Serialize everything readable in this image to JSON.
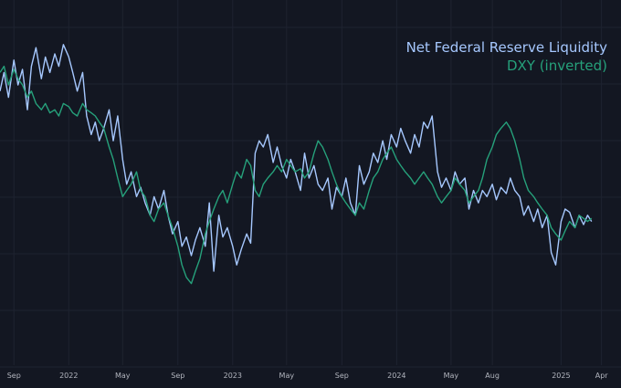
{
  "chart_data": {
    "type": "line",
    "title": "",
    "xlabel": "",
    "ylabel": "",
    "x_ticks": [
      "Sep",
      "2022",
      "May",
      "Sep",
      "2023",
      "May",
      "Sep",
      "2024",
      "May",
      "Aug",
      "2025",
      "Apr"
    ],
    "x_tick_dates": [
      "2021-09-01",
      "2022-01-01",
      "2022-05-01",
      "2022-09-01",
      "2023-01-01",
      "2023-05-01",
      "2023-09-01",
      "2024-01-01",
      "2024-05-01",
      "2024-08-01",
      "2025-01-01",
      "2025-04-01"
    ],
    "x_range": [
      "2021-08-01",
      "2025-04-20"
    ],
    "y_axis": "hidden",
    "y_range": [
      0,
      100
    ],
    "grid": true,
    "legend_placement": "top-right",
    "series": [
      {
        "name": "Net Federal Reserve Liquidity",
        "color": "#a6c8ff",
        "values": [
          [
            "2021-08-01",
            78
          ],
          [
            "2021-08-10",
            84
          ],
          [
            "2021-08-20",
            76
          ],
          [
            "2021-09-01",
            88
          ],
          [
            "2021-09-10",
            80
          ],
          [
            "2021-09-20",
            85
          ],
          [
            "2021-10-01",
            72
          ],
          [
            "2021-10-10",
            86
          ],
          [
            "2021-10-20",
            92
          ],
          [
            "2021-11-01",
            82
          ],
          [
            "2021-11-10",
            89
          ],
          [
            "2021-11-20",
            84
          ],
          [
            "2021-12-01",
            90
          ],
          [
            "2021-12-10",
            86
          ],
          [
            "2021-12-20",
            93
          ],
          [
            "2022-01-01",
            89
          ],
          [
            "2022-01-10",
            84
          ],
          [
            "2022-01-20",
            78
          ],
          [
            "2022-02-01",
            84
          ],
          [
            "2022-02-10",
            70
          ],
          [
            "2022-02-20",
            64
          ],
          [
            "2022-03-01",
            68
          ],
          [
            "2022-03-10",
            62
          ],
          [
            "2022-03-20",
            66
          ],
          [
            "2022-04-01",
            72
          ],
          [
            "2022-04-10",
            62
          ],
          [
            "2022-04-20",
            70
          ],
          [
            "2022-05-01",
            56
          ],
          [
            "2022-05-10",
            48
          ],
          [
            "2022-05-20",
            52
          ],
          [
            "2022-06-01",
            44
          ],
          [
            "2022-06-10",
            47
          ],
          [
            "2022-06-20",
            42
          ],
          [
            "2022-07-01",
            38
          ],
          [
            "2022-07-10",
            44
          ],
          [
            "2022-07-20",
            40
          ],
          [
            "2022-08-01",
            46
          ],
          [
            "2022-08-10",
            38
          ],
          [
            "2022-08-20",
            32
          ],
          [
            "2022-09-01",
            36
          ],
          [
            "2022-09-10",
            28
          ],
          [
            "2022-09-20",
            31
          ],
          [
            "2022-10-01",
            25
          ],
          [
            "2022-10-10",
            30
          ],
          [
            "2022-10-20",
            34
          ],
          [
            "2022-11-01",
            28
          ],
          [
            "2022-11-10",
            42
          ],
          [
            "2022-11-20",
            20
          ],
          [
            "2022-12-01",
            38
          ],
          [
            "2022-12-10",
            31
          ],
          [
            "2022-12-20",
            34
          ],
          [
            "2023-01-01",
            28
          ],
          [
            "2023-01-10",
            22
          ],
          [
            "2023-01-20",
            27
          ],
          [
            "2023-02-01",
            32
          ],
          [
            "2023-02-10",
            29
          ],
          [
            "2023-02-20",
            58
          ],
          [
            "2023-03-01",
            62
          ],
          [
            "2023-03-10",
            60
          ],
          [
            "2023-03-20",
            64
          ],
          [
            "2023-04-01",
            55
          ],
          [
            "2023-04-10",
            60
          ],
          [
            "2023-04-20",
            54
          ],
          [
            "2023-05-01",
            50
          ],
          [
            "2023-05-10",
            56
          ],
          [
            "2023-05-20",
            52
          ],
          [
            "2023-06-01",
            46
          ],
          [
            "2023-06-10",
            58
          ],
          [
            "2023-06-20",
            50
          ],
          [
            "2023-07-01",
            54
          ],
          [
            "2023-07-10",
            48
          ],
          [
            "2023-07-20",
            46
          ],
          [
            "2023-08-01",
            50
          ],
          [
            "2023-08-10",
            40
          ],
          [
            "2023-08-20",
            47
          ],
          [
            "2023-09-01",
            44
          ],
          [
            "2023-09-10",
            50
          ],
          [
            "2023-09-20",
            42
          ],
          [
            "2023-10-01",
            38
          ],
          [
            "2023-10-10",
            54
          ],
          [
            "2023-10-20",
            48
          ],
          [
            "2023-11-01",
            52
          ],
          [
            "2023-11-10",
            58
          ],
          [
            "2023-11-20",
            55
          ],
          [
            "2023-12-01",
            62
          ],
          [
            "2023-12-10",
            56
          ],
          [
            "2023-12-20",
            64
          ],
          [
            "2024-01-01",
            60
          ],
          [
            "2024-01-10",
            66
          ],
          [
            "2024-01-20",
            62
          ],
          [
            "2024-02-01",
            58
          ],
          [
            "2024-02-10",
            64
          ],
          [
            "2024-02-20",
            60
          ],
          [
            "2024-03-01",
            68
          ],
          [
            "2024-03-10",
            66
          ],
          [
            "2024-03-20",
            70
          ],
          [
            "2024-04-01",
            52
          ],
          [
            "2024-04-10",
            47
          ],
          [
            "2024-04-20",
            50
          ],
          [
            "2024-05-01",
            46
          ],
          [
            "2024-05-10",
            52
          ],
          [
            "2024-05-20",
            48
          ],
          [
            "2024-06-01",
            50
          ],
          [
            "2024-06-10",
            40
          ],
          [
            "2024-06-20",
            46
          ],
          [
            "2024-07-01",
            42
          ],
          [
            "2024-07-10",
            46
          ],
          [
            "2024-07-20",
            44
          ],
          [
            "2024-08-01",
            48
          ],
          [
            "2024-08-10",
            43
          ],
          [
            "2024-08-20",
            47
          ],
          [
            "2024-09-01",
            45
          ],
          [
            "2024-09-10",
            50
          ],
          [
            "2024-09-20",
            46
          ],
          [
            "2024-10-01",
            44
          ],
          [
            "2024-10-10",
            38
          ],
          [
            "2024-10-20",
            41
          ],
          [
            "2024-11-01",
            36
          ],
          [
            "2024-11-10",
            40
          ],
          [
            "2024-11-20",
            34
          ],
          [
            "2024-12-01",
            38
          ],
          [
            "2024-12-10",
            26
          ],
          [
            "2024-12-20",
            22
          ],
          [
            "2025-01-01",
            36
          ],
          [
            "2025-01-10",
            40
          ],
          [
            "2025-01-20",
            39
          ],
          [
            "2025-02-01",
            34
          ],
          [
            "2025-02-10",
            38
          ],
          [
            "2025-02-20",
            35
          ],
          [
            "2025-03-01",
            38
          ],
          [
            "2025-03-10",
            36
          ]
        ]
      },
      {
        "name": "DXY (inverted)",
        "color": "#26a17b",
        "values": [
          [
            "2021-08-01",
            84
          ],
          [
            "2021-08-10",
            86
          ],
          [
            "2021-08-20",
            80
          ],
          [
            "2021-09-01",
            85
          ],
          [
            "2021-09-10",
            82
          ],
          [
            "2021-09-20",
            80
          ],
          [
            "2021-10-01",
            76
          ],
          [
            "2021-10-10",
            78
          ],
          [
            "2021-10-20",
            74
          ],
          [
            "2021-11-01",
            72
          ],
          [
            "2021-11-10",
            74
          ],
          [
            "2021-11-20",
            71
          ],
          [
            "2021-12-01",
            72
          ],
          [
            "2021-12-10",
            70
          ],
          [
            "2021-12-20",
            74
          ],
          [
            "2022-01-01",
            73
          ],
          [
            "2022-01-10",
            71
          ],
          [
            "2022-01-20",
            70
          ],
          [
            "2022-02-01",
            74
          ],
          [
            "2022-02-10",
            72
          ],
          [
            "2022-02-20",
            71
          ],
          [
            "2022-03-01",
            70
          ],
          [
            "2022-03-10",
            68
          ],
          [
            "2022-03-20",
            66
          ],
          [
            "2022-04-01",
            60
          ],
          [
            "2022-04-10",
            56
          ],
          [
            "2022-04-20",
            50
          ],
          [
            "2022-05-01",
            44
          ],
          [
            "2022-05-10",
            46
          ],
          [
            "2022-05-20",
            48
          ],
          [
            "2022-06-01",
            52
          ],
          [
            "2022-06-10",
            46
          ],
          [
            "2022-06-20",
            44
          ],
          [
            "2022-07-01",
            38
          ],
          [
            "2022-07-10",
            36
          ],
          [
            "2022-07-20",
            40
          ],
          [
            "2022-08-01",
            42
          ],
          [
            "2022-08-10",
            38
          ],
          [
            "2022-08-20",
            34
          ],
          [
            "2022-09-01",
            28
          ],
          [
            "2022-09-10",
            22
          ],
          [
            "2022-09-20",
            18
          ],
          [
            "2022-10-01",
            16
          ],
          [
            "2022-10-10",
            20
          ],
          [
            "2022-10-20",
            24
          ],
          [
            "2022-11-01",
            32
          ],
          [
            "2022-11-10",
            36
          ],
          [
            "2022-11-20",
            40
          ],
          [
            "2022-12-01",
            44
          ],
          [
            "2022-12-10",
            46
          ],
          [
            "2022-12-20",
            42
          ],
          [
            "2023-01-01",
            48
          ],
          [
            "2023-01-10",
            52
          ],
          [
            "2023-01-20",
            50
          ],
          [
            "2023-02-01",
            56
          ],
          [
            "2023-02-10",
            54
          ],
          [
            "2023-02-20",
            46
          ],
          [
            "2023-03-01",
            44
          ],
          [
            "2023-03-10",
            48
          ],
          [
            "2023-03-20",
            50
          ],
          [
            "2023-04-01",
            52
          ],
          [
            "2023-04-10",
            54
          ],
          [
            "2023-04-20",
            52
          ],
          [
            "2023-05-01",
            56
          ],
          [
            "2023-05-10",
            54
          ],
          [
            "2023-05-20",
            52
          ],
          [
            "2023-06-01",
            53
          ],
          [
            "2023-06-10",
            50
          ],
          [
            "2023-06-20",
            52
          ],
          [
            "2023-07-01",
            58
          ],
          [
            "2023-07-10",
            62
          ],
          [
            "2023-07-20",
            60
          ],
          [
            "2023-08-01",
            56
          ],
          [
            "2023-08-10",
            52
          ],
          [
            "2023-08-20",
            48
          ],
          [
            "2023-09-01",
            44
          ],
          [
            "2023-09-10",
            42
          ],
          [
            "2023-09-20",
            40
          ],
          [
            "2023-10-01",
            38
          ],
          [
            "2023-10-10",
            42
          ],
          [
            "2023-10-20",
            40
          ],
          [
            "2023-11-01",
            46
          ],
          [
            "2023-11-10",
            50
          ],
          [
            "2023-11-20",
            52
          ],
          [
            "2023-12-01",
            56
          ],
          [
            "2023-12-10",
            58
          ],
          [
            "2023-12-20",
            60
          ],
          [
            "2024-01-01",
            56
          ],
          [
            "2024-01-10",
            54
          ],
          [
            "2024-01-20",
            52
          ],
          [
            "2024-02-01",
            50
          ],
          [
            "2024-02-10",
            48
          ],
          [
            "2024-02-20",
            50
          ],
          [
            "2024-03-01",
            52
          ],
          [
            "2024-03-10",
            50
          ],
          [
            "2024-03-20",
            48
          ],
          [
            "2024-04-01",
            44
          ],
          [
            "2024-04-10",
            42
          ],
          [
            "2024-04-20",
            44
          ],
          [
            "2024-05-01",
            46
          ],
          [
            "2024-05-10",
            50
          ],
          [
            "2024-05-20",
            48
          ],
          [
            "2024-06-01",
            46
          ],
          [
            "2024-06-10",
            42
          ],
          [
            "2024-06-20",
            44
          ],
          [
            "2024-07-01",
            46
          ],
          [
            "2024-07-10",
            50
          ],
          [
            "2024-07-20",
            56
          ],
          [
            "2024-08-01",
            60
          ],
          [
            "2024-08-10",
            64
          ],
          [
            "2024-08-20",
            66
          ],
          [
            "2024-09-01",
            68
          ],
          [
            "2024-09-10",
            66
          ],
          [
            "2024-09-20",
            62
          ],
          [
            "2024-10-01",
            56
          ],
          [
            "2024-10-10",
            50
          ],
          [
            "2024-10-20",
            46
          ],
          [
            "2024-11-01",
            44
          ],
          [
            "2024-11-10",
            42
          ],
          [
            "2024-11-20",
            40
          ],
          [
            "2024-12-01",
            38
          ],
          [
            "2024-12-10",
            34
          ],
          [
            "2024-12-20",
            32
          ],
          [
            "2025-01-01",
            30
          ],
          [
            "2025-01-10",
            33
          ],
          [
            "2025-01-20",
            36
          ],
          [
            "2025-02-01",
            34
          ],
          [
            "2025-02-10",
            38
          ],
          [
            "2025-02-20",
            37
          ],
          [
            "2025-03-01",
            36
          ],
          [
            "2025-03-10",
            37
          ]
        ]
      }
    ]
  }
}
